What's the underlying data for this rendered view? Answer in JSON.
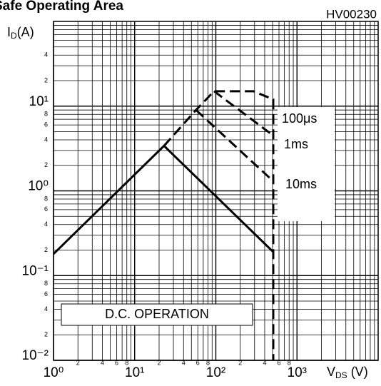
{
  "chart_data": {
    "type": "line",
    "title": "Safe Operating Area",
    "code": "HV00230",
    "xlabel": [
      "V",
      "DS",
      " (V)"
    ],
    "ylabel": [
      "I",
      "D",
      "(A)"
    ],
    "xscale": "log",
    "yscale": "log",
    "grid": true,
    "xlim": [
      1,
      10000
    ],
    "ylim": [
      0.01,
      100
    ],
    "xticks": [
      {
        "value": 1,
        "label": "10⁰"
      },
      {
        "value": 10,
        "label": "10¹"
      },
      {
        "value": 100,
        "label": "10²"
      },
      {
        "value": 1000,
        "label": "10³"
      }
    ],
    "yticks": [
      {
        "value": 0.01,
        "label": "10⁻²"
      },
      {
        "value": 0.1,
        "label": "10⁻¹"
      },
      {
        "value": 1,
        "label": "10⁰"
      },
      {
        "value": 10,
        "label": "10¹"
      }
    ],
    "xminorlabels": [
      {
        "value": 2,
        "label": "2"
      },
      {
        "value": 4,
        "label": "4"
      },
      {
        "value": 6,
        "label": "6"
      },
      {
        "value": 8,
        "label": "8"
      },
      {
        "value": 20,
        "label": "2"
      },
      {
        "value": 40,
        "label": "4"
      },
      {
        "value": 60,
        "label": "6"
      },
      {
        "value": 80,
        "label": "8"
      },
      {
        "value": 200,
        "label": "2"
      },
      {
        "value": 400,
        "label": "4"
      },
      {
        "value": 600,
        "label": "6"
      },
      {
        "value": 800,
        "label": "8"
      }
    ],
    "yminorlabels": [
      {
        "value": 0.02,
        "label": "2"
      },
      {
        "value": 0.04,
        "label": "4"
      },
      {
        "value": 0.06,
        "label": "6"
      },
      {
        "value": 0.08,
        "label": "8"
      },
      {
        "value": 0.2,
        "label": "2"
      },
      {
        "value": 0.4,
        "label": "4"
      },
      {
        "value": 0.6,
        "label": "6"
      },
      {
        "value": 0.8,
        "label": "8"
      },
      {
        "value": 2,
        "label": "2"
      },
      {
        "value": 4,
        "label": "4"
      },
      {
        "value": 6,
        "label": "6"
      },
      {
        "value": 8,
        "label": "8"
      },
      {
        "value": 20,
        "label": "2"
      },
      {
        "value": 40,
        "label": "4"
      }
    ],
    "xgrid": [
      2,
      3,
      4,
      5,
      6,
      7,
      8,
      9,
      20,
      30,
      40,
      50,
      60,
      70,
      80,
      90,
      200,
      300,
      400,
      500,
      600,
      700,
      800,
      900,
      2000,
      3000,
      4000,
      5000,
      6000,
      7000,
      8000,
      9000
    ],
    "ygrid": [
      0.02,
      0.03,
      0.04,
      0.05,
      0.06,
      0.07,
      0.08,
      0.09,
      0.2,
      0.3,
      0.4,
      0.5,
      0.6,
      0.7,
      0.8,
      0.9,
      2,
      3,
      4,
      5,
      6,
      7,
      8,
      9,
      20,
      30,
      40,
      50,
      60,
      70,
      80,
      90
    ],
    "color": "#000000",
    "series": [
      {
        "name": "D.C. OPERATION",
        "dash": false,
        "x": [
          1,
          23,
          510
        ],
        "values": [
          0.18,
          3.4,
          0.19
        ]
      },
      {
        "name": "100μs",
        "dash": true,
        "x": [
          23,
          57,
          95,
          290,
          510,
          510
        ],
        "values": [
          3.4,
          9,
          15,
          15,
          12,
          0.01
        ]
      },
      {
        "name": "1ms",
        "dash": true,
        "x": [
          95,
          510
        ],
        "values": [
          15,
          4.5
        ]
      },
      {
        "name": "10ms",
        "dash": true,
        "x": [
          57,
          510
        ],
        "values": [
          9,
          1.3
        ]
      }
    ]
  }
}
